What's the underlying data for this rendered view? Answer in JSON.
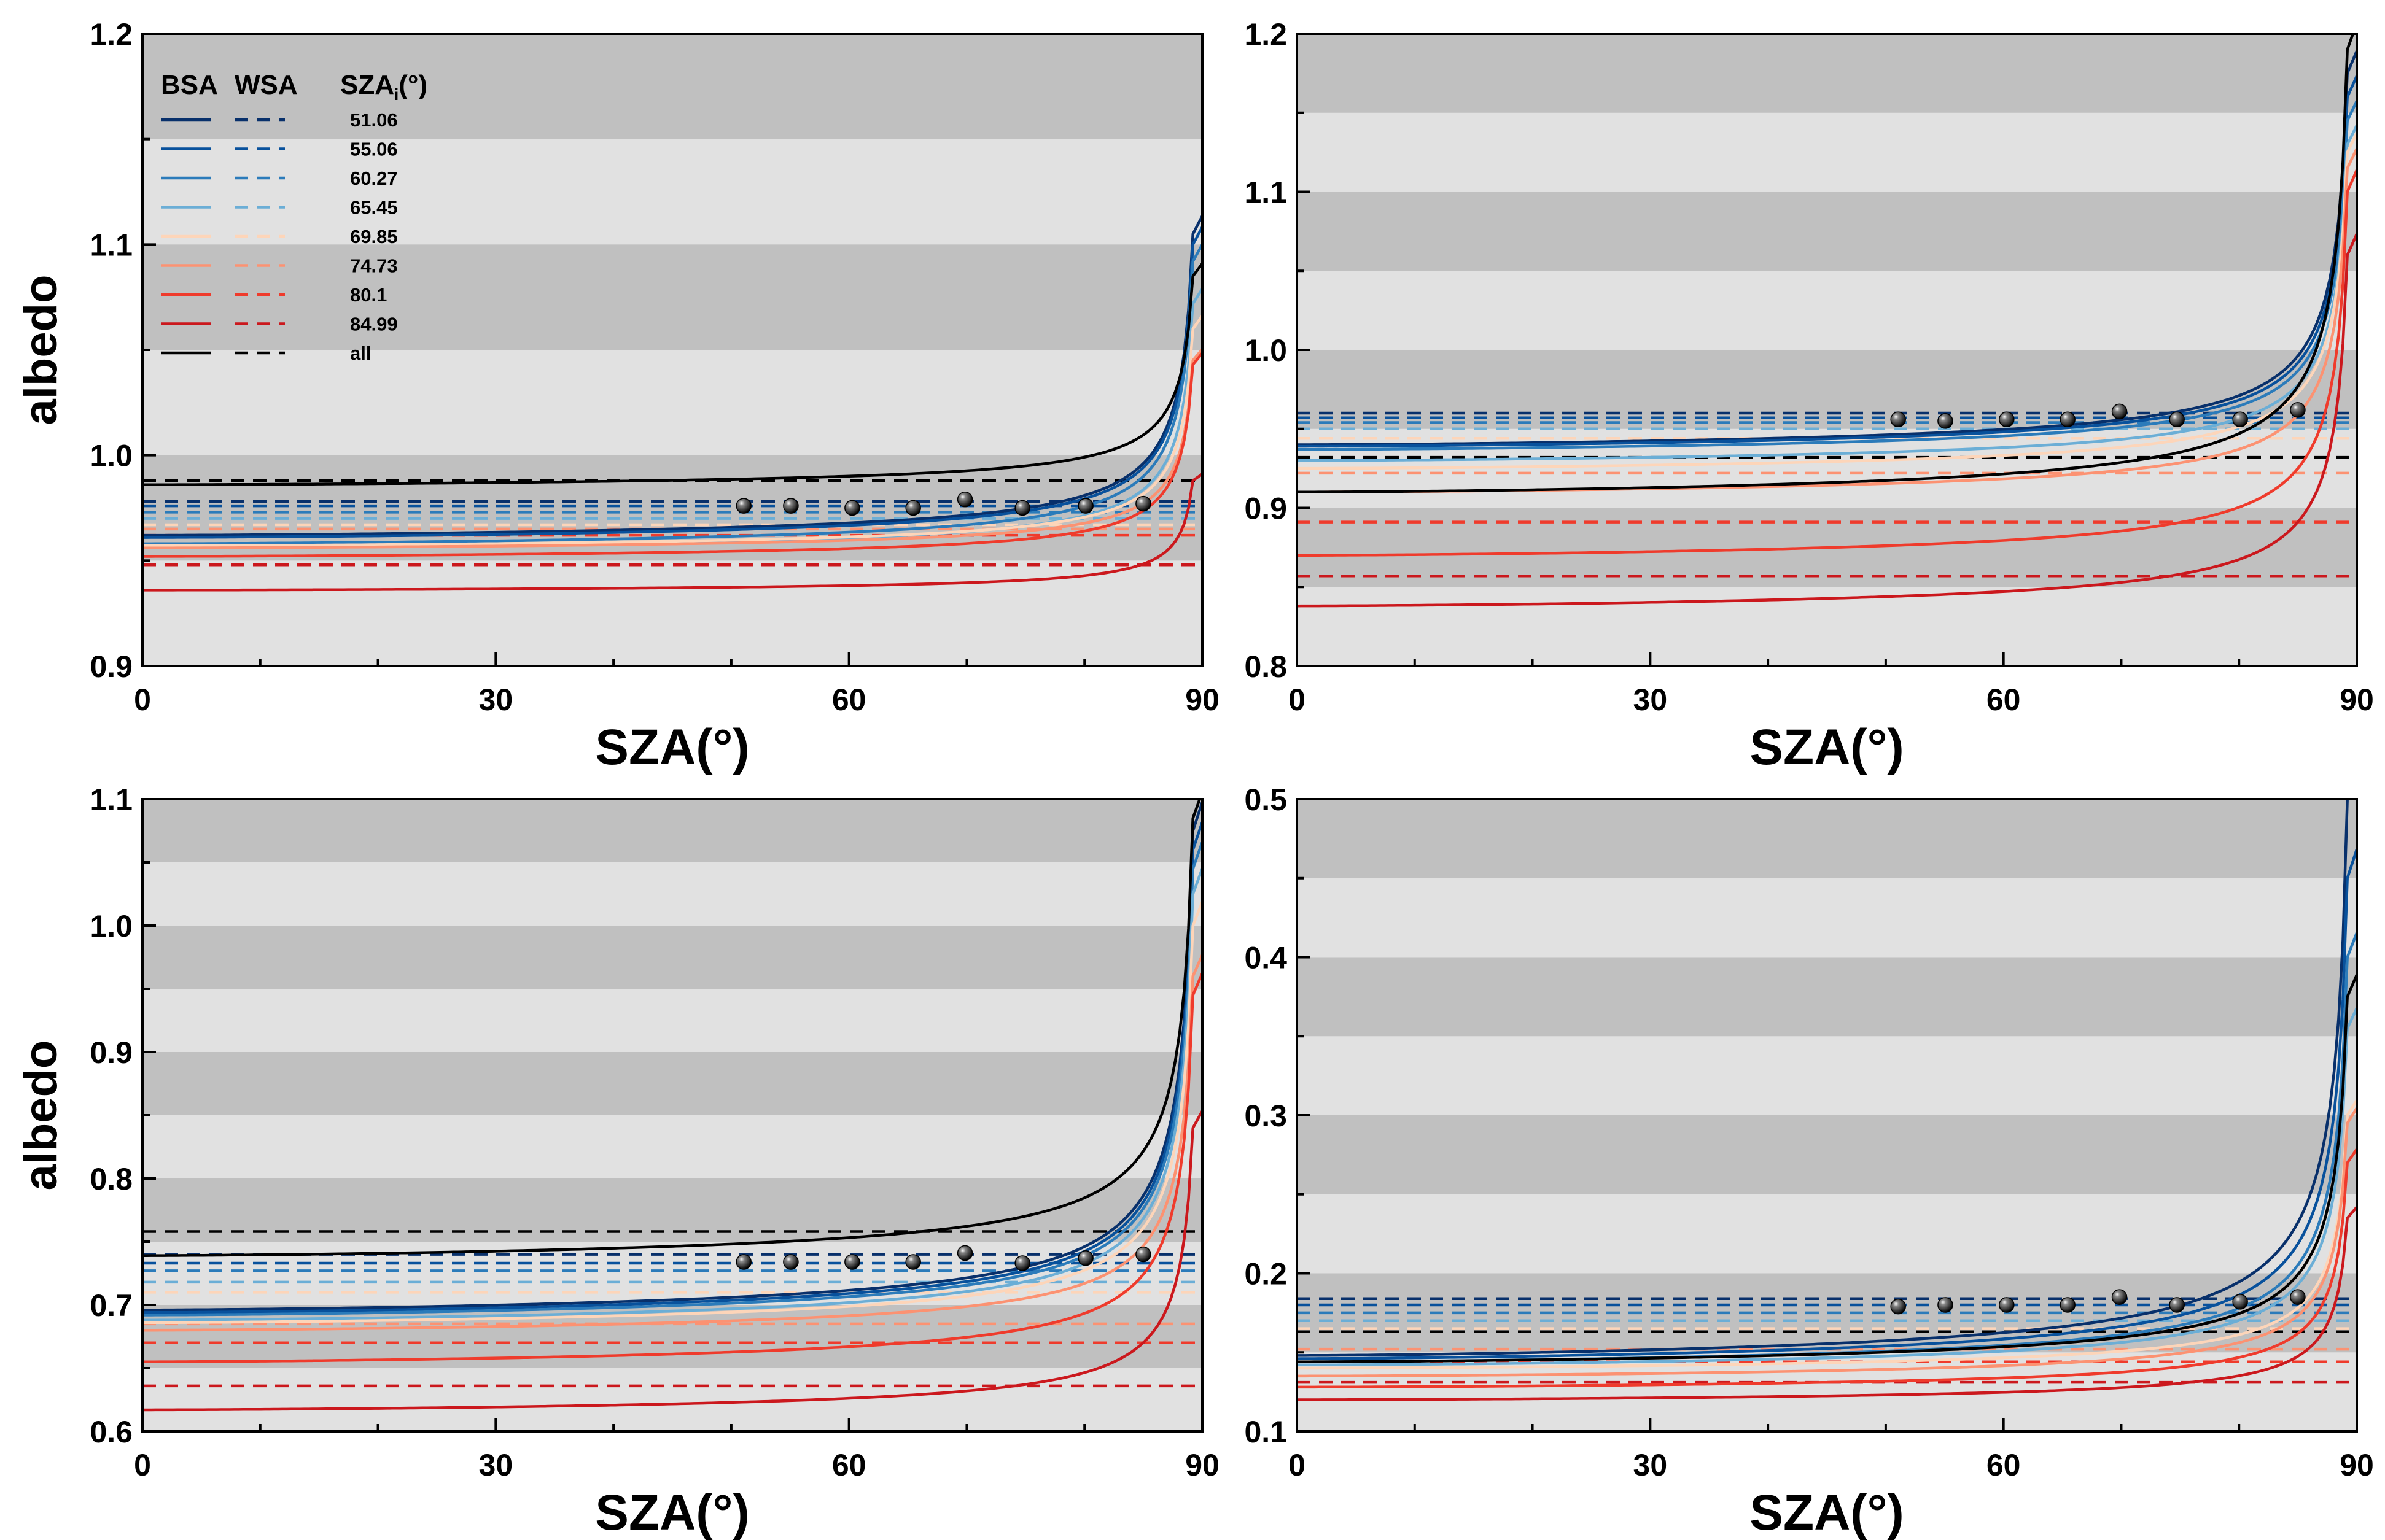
{
  "figure": {
    "legend": {
      "header_bsa": "BSA",
      "header_wsa": "WSA",
      "header_sza": "SZA",
      "header_sza_sub": "i",
      "header_sza_unit": "(°)",
      "entries": [
        "51.06",
        "55.06",
        "60.27",
        "65.45",
        "69.85",
        "74.73",
        "80.1",
        "84.99",
        "all"
      ]
    },
    "series_colors": {
      "51.06": "#08306b",
      "55.06": "#08519c",
      "60.27": "#2b7bba",
      "65.45": "#6baed6",
      "69.85": "#fdd5b9",
      "74.73": "#fc9272",
      "80.1": "#ef3b2c",
      "84.99": "#cb181d",
      "all": "#000000"
    },
    "band_colors": {
      "dark": "#c0c0c0",
      "light": "#e1e1e1"
    }
  },
  "chart_data": [
    {
      "type": "line",
      "panel": "top-left",
      "xlabel": "SZA(°)",
      "ylabel": "albedo",
      "xlim": [
        0,
        90
      ],
      "ylim": [
        0.9,
        1.2
      ],
      "xticks": [
        0,
        30,
        60,
        90
      ],
      "yticks": [
        0.9,
        1.0,
        1.1,
        1.2
      ],
      "bands": [
        [
          1.15,
          1.2
        ],
        [
          1.05,
          1.1
        ],
        [
          0.95,
          1.0
        ]
      ],
      "series": [
        {
          "name": "51.06",
          "bsa_base": 0.962,
          "bsa_end": 1.105,
          "wsa": 0.978
        },
        {
          "name": "55.06",
          "bsa_base": 0.961,
          "bsa_end": 1.1,
          "wsa": 0.976
        },
        {
          "name": "60.27",
          "bsa_base": 0.958,
          "bsa_end": 1.092,
          "wsa": 0.973
        },
        {
          "name": "65.45",
          "bsa_base": 0.956,
          "bsa_end": 1.072,
          "wsa": 0.97
        },
        {
          "name": "69.85",
          "bsa_base": 0.957,
          "bsa_end": 1.06,
          "wsa": 0.967
        },
        {
          "name": "74.73",
          "bsa_base": 0.956,
          "bsa_end": 1.045,
          "wsa": 0.965
        },
        {
          "name": "80.1",
          "bsa_base": 0.952,
          "bsa_end": 1.043,
          "wsa": 0.962
        },
        {
          "name": "84.99",
          "bsa_base": 0.936,
          "bsa_end": 0.988,
          "wsa": 0.948
        },
        {
          "name": "all",
          "bsa_base": 0.986,
          "bsa_end": 1.085,
          "wsa": 0.988
        }
      ],
      "observed_sza": [
        51.06,
        55.06,
        60.27,
        65.45,
        69.85,
        74.73,
        80.1,
        84.99
      ],
      "observed": [
        0.976,
        0.976,
        0.975,
        0.975,
        0.979,
        0.975,
        0.976,
        0.977
      ]
    },
    {
      "type": "line",
      "panel": "top-right",
      "xlabel": "SZA(°)",
      "ylabel": "",
      "xlim": [
        0,
        90
      ],
      "ylim": [
        0.8,
        1.2
      ],
      "xticks": [
        0,
        30,
        60,
        90
      ],
      "yticks": [
        0.8,
        0.9,
        1.0,
        1.1,
        1.2
      ],
      "bands": [
        [
          1.15,
          1.2
        ],
        [
          1.05,
          1.1
        ],
        [
          0.95,
          1.0
        ],
        [
          0.85,
          0.9
        ]
      ],
      "series": [
        {
          "name": "51.06",
          "bsa_base": 0.94,
          "bsa_end": 1.175,
          "wsa": 0.96
        },
        {
          "name": "55.06",
          "bsa_base": 0.939,
          "bsa_end": 1.16,
          "wsa": 0.957
        },
        {
          "name": "60.27",
          "bsa_base": 0.937,
          "bsa_end": 1.145,
          "wsa": 0.954
        },
        {
          "name": "65.45",
          "bsa_base": 0.93,
          "bsa_end": 1.13,
          "wsa": 0.95
        },
        {
          "name": "69.85",
          "bsa_base": 0.925,
          "bsa_end": 1.125,
          "wsa": 0.944
        },
        {
          "name": "74.73",
          "bsa_base": 0.91,
          "bsa_end": 1.115,
          "wsa": 0.922
        },
        {
          "name": "80.1",
          "bsa_base": 0.87,
          "bsa_end": 1.1,
          "wsa": 0.891
        },
        {
          "name": "84.99",
          "bsa_base": 0.838,
          "bsa_end": 1.06,
          "wsa": 0.857
        },
        {
          "name": "all",
          "bsa_base": 0.91,
          "bsa_end": 1.19,
          "wsa": 0.932
        }
      ],
      "observed_sza": [
        51.06,
        55.06,
        60.27,
        65.45,
        69.85,
        74.73,
        80.1,
        84.99
      ],
      "observed": [
        0.956,
        0.955,
        0.956,
        0.956,
        0.961,
        0.956,
        0.956,
        0.962
      ]
    },
    {
      "type": "line",
      "panel": "bottom-left",
      "xlabel": "SZA(°)",
      "ylabel": "albedo",
      "xlim": [
        0,
        90
      ],
      "ylim": [
        0.6,
        1.1
      ],
      "xticks": [
        0,
        30,
        60,
        90
      ],
      "yticks": [
        0.6,
        0.7,
        0.8,
        0.9,
        1.0,
        1.1
      ],
      "bands": [
        [
          1.05,
          1.1
        ],
        [
          0.95,
          1.0
        ],
        [
          0.85,
          0.9
        ],
        [
          0.75,
          0.8
        ],
        [
          0.65,
          0.7
        ]
      ],
      "series": [
        {
          "name": "51.06",
          "bsa_base": 0.696,
          "bsa_end": 1.075,
          "wsa": 0.74
        },
        {
          "name": "55.06",
          "bsa_base": 0.694,
          "bsa_end": 1.06,
          "wsa": 0.733
        },
        {
          "name": "60.27",
          "bsa_base": 0.692,
          "bsa_end": 1.045,
          "wsa": 0.727
        },
        {
          "name": "65.45",
          "bsa_base": 0.688,
          "bsa_end": 1.025,
          "wsa": 0.718
        },
        {
          "name": "69.85",
          "bsa_base": 0.686,
          "bsa_end": 1.0,
          "wsa": 0.71
        },
        {
          "name": "74.73",
          "bsa_base": 0.68,
          "bsa_end": 0.96,
          "wsa": 0.685
        },
        {
          "name": "80.1",
          "bsa_base": 0.655,
          "bsa_end": 0.945,
          "wsa": 0.67
        },
        {
          "name": "84.99",
          "bsa_base": 0.617,
          "bsa_end": 0.84,
          "wsa": 0.636
        },
        {
          "name": "all",
          "bsa_base": 0.739,
          "bsa_end": 1.085,
          "wsa": 0.758
        }
      ],
      "observed_sza": [
        51.06,
        55.06,
        60.27,
        65.45,
        69.85,
        74.73,
        80.1,
        84.99
      ],
      "observed": [
        0.734,
        0.734,
        0.734,
        0.734,
        0.741,
        0.733,
        0.737,
        0.74
      ]
    },
    {
      "type": "line",
      "panel": "bottom-right",
      "xlabel": "SZA(°)",
      "ylabel": "",
      "xlim": [
        0,
        90
      ],
      "ylim": [
        0.1,
        0.5
      ],
      "xticks": [
        0,
        30,
        60,
        90
      ],
      "yticks": [
        0.1,
        0.2,
        0.3,
        0.4,
        0.5
      ],
      "bands": [
        [
          0.45,
          0.5
        ],
        [
          0.35,
          0.4
        ],
        [
          0.25,
          0.3
        ],
        [
          0.15,
          0.2
        ]
      ],
      "series": [
        {
          "name": "51.06",
          "bsa_base": 0.148,
          "bsa_end": 0.5,
          "wsa": 0.184
        },
        {
          "name": "55.06",
          "bsa_base": 0.146,
          "bsa_end": 0.45,
          "wsa": 0.18
        },
        {
          "name": "60.27",
          "bsa_base": 0.144,
          "bsa_end": 0.4,
          "wsa": 0.175
        },
        {
          "name": "65.45",
          "bsa_base": 0.142,
          "bsa_end": 0.355,
          "wsa": 0.17
        },
        {
          "name": "69.85",
          "bsa_base": 0.14,
          "bsa_end": 0.3,
          "wsa": 0.165
        },
        {
          "name": "74.73",
          "bsa_base": 0.135,
          "bsa_end": 0.295,
          "wsa": 0.152
        },
        {
          "name": "80.1",
          "bsa_base": 0.128,
          "bsa_end": 0.27,
          "wsa": 0.144
        },
        {
          "name": "84.99",
          "bsa_base": 0.12,
          "bsa_end": 0.235,
          "wsa": 0.131
        },
        {
          "name": "all",
          "bsa_base": 0.144,
          "bsa_end": 0.375,
          "wsa": 0.163
        }
      ],
      "observed_sza": [
        51.06,
        55.06,
        60.27,
        65.45,
        69.85,
        74.73,
        80.1,
        84.99
      ],
      "observed": [
        0.179,
        0.18,
        0.18,
        0.18,
        0.185,
        0.18,
        0.182,
        0.185
      ]
    }
  ]
}
